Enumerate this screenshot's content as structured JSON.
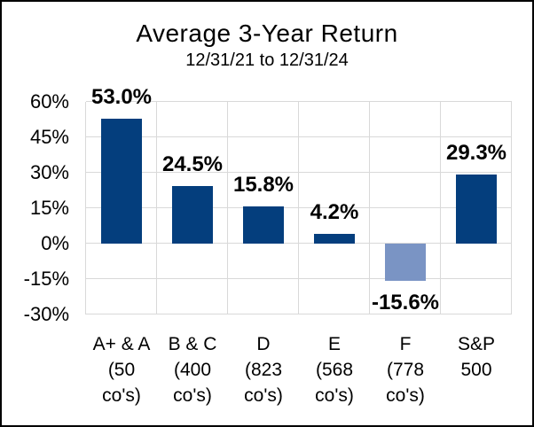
{
  "header": {
    "title": "Average 3-Year Return",
    "subtitle": "12/31/21 to 12/31/24"
  },
  "chart_data": {
    "type": "bar",
    "title": "Average 3-Year Return",
    "subtitle": "12/31/21 to 12/31/24",
    "categories": [
      "A+ & A (50 co's)",
      "B & C (400 co's)",
      "D (823 co's)",
      "E (568 co's)",
      "F (778 co's)",
      "S&P 500"
    ],
    "category_label_lines": [
      [
        "A+ & A",
        "(50",
        "co's)"
      ],
      [
        "B & C",
        "(400",
        "co's)"
      ],
      [
        "D",
        "(823",
        "co's)"
      ],
      [
        "E",
        "(568",
        "co's)"
      ],
      [
        "F",
        "(778",
        "co's)"
      ],
      [
        "S&P",
        "500"
      ]
    ],
    "values": [
      53.0,
      24.5,
      15.8,
      4.2,
      -15.6,
      29.3
    ],
    "value_labels": [
      "53.0%",
      "24.5%",
      "15.8%",
      "4.2%",
      "-15.6%",
      "29.3%"
    ],
    "bar_colors": [
      "#043E7D",
      "#043E7D",
      "#043E7D",
      "#043E7D",
      "#7A94C4",
      "#043E7D"
    ],
    "ylim": [
      -30,
      60
    ],
    "ytick_step": 15,
    "ytick_labels": [
      "60%",
      "45%",
      "30%",
      "15%",
      "0%",
      "-15%",
      "-30%"
    ],
    "grid": true,
    "legend": "none",
    "colors": {
      "bar_positive": "#043E7D",
      "bar_negative": "#7A94C4",
      "gridline": "#D9D9D9",
      "text": "#000000",
      "background": "#FFFFFF",
      "frame_border": "#000000"
    }
  }
}
